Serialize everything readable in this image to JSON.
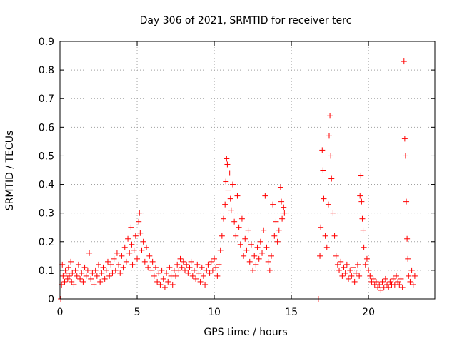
{
  "chart_data": {
    "type": "scatter",
    "title": "Day 306 of 2021, SRMTID for receiver terc",
    "xlabel": "GPS time / hours",
    "ylabel": "SRMTID / TECUs",
    "xlim": [
      0,
      24.3
    ],
    "ylim": [
      0,
      0.9
    ],
    "x_ticks": [
      0,
      5,
      10,
      15,
      20
    ],
    "x_tick_labels": [
      "0",
      "5",
      "10",
      "15",
      "20"
    ],
    "y_ticks": [
      0,
      0.1,
      0.2,
      0.3,
      0.4,
      0.5,
      0.6,
      0.7,
      0.8,
      0.9
    ],
    "y_tick_labels": [
      "0",
      "0.1",
      "0.2",
      "0.3",
      "0.4",
      "0.5",
      "0.6",
      "0.7",
      "0.8",
      "0.9"
    ],
    "grid": true,
    "marker": "+",
    "marker_color": "#ff0000",
    "series": [
      {
        "name": "SRMTID",
        "points": [
          [
            0.05,
            0.0
          ],
          [
            0.1,
            0.05
          ],
          [
            0.15,
            0.12
          ],
          [
            0.2,
            0.08
          ],
          [
            0.3,
            0.06
          ],
          [
            0.35,
            0.1
          ],
          [
            0.4,
            0.09
          ],
          [
            0.5,
            0.07
          ],
          [
            0.55,
            0.11
          ],
          [
            0.6,
            0.08
          ],
          [
            0.7,
            0.13
          ],
          [
            0.75,
            0.06
          ],
          [
            0.8,
            0.09
          ],
          [
            0.9,
            0.05
          ],
          [
            1.0,
            0.1
          ],
          [
            1.1,
            0.08
          ],
          [
            1.2,
            0.12
          ],
          [
            1.3,
            0.07
          ],
          [
            1.4,
            0.09
          ],
          [
            1.5,
            0.06
          ],
          [
            1.6,
            0.11
          ],
          [
            1.7,
            0.08
          ],
          [
            1.8,
            0.1
          ],
          [
            1.9,
            0.16
          ],
          [
            2.0,
            0.07
          ],
          [
            2.1,
            0.09
          ],
          [
            2.2,
            0.05
          ],
          [
            2.3,
            0.1
          ],
          [
            2.4,
            0.08
          ],
          [
            2.5,
            0.12
          ],
          [
            2.6,
            0.06
          ],
          [
            2.7,
            0.09
          ],
          [
            2.8,
            0.11
          ],
          [
            2.9,
            0.07
          ],
          [
            3.0,
            0.1
          ],
          [
            3.1,
            0.13
          ],
          [
            3.2,
            0.08
          ],
          [
            3.3,
            0.12
          ],
          [
            3.4,
            0.09
          ],
          [
            3.5,
            0.14
          ],
          [
            3.6,
            0.1
          ],
          [
            3.7,
            0.16
          ],
          [
            3.8,
            0.12
          ],
          [
            3.9,
            0.09
          ],
          [
            4.0,
            0.15
          ],
          [
            4.1,
            0.11
          ],
          [
            4.2,
            0.18
          ],
          [
            4.3,
            0.13
          ],
          [
            4.4,
            0.21
          ],
          [
            4.5,
            0.16
          ],
          [
            4.6,
            0.25
          ],
          [
            4.65,
            0.19
          ],
          [
            4.7,
            0.12
          ],
          [
            4.8,
            0.17
          ],
          [
            4.9,
            0.22
          ],
          [
            5.0,
            0.14
          ],
          [
            5.1,
            0.27
          ],
          [
            5.15,
            0.3
          ],
          [
            5.2,
            0.23
          ],
          [
            5.3,
            0.17
          ],
          [
            5.4,
            0.2
          ],
          [
            5.5,
            0.13
          ],
          [
            5.6,
            0.18
          ],
          [
            5.7,
            0.11
          ],
          [
            5.8,
            0.15
          ],
          [
            5.9,
            0.1
          ],
          [
            6.0,
            0.13
          ],
          [
            6.1,
            0.08
          ],
          [
            6.2,
            0.11
          ],
          [
            6.3,
            0.06
          ],
          [
            6.4,
            0.09
          ],
          [
            6.5,
            0.05
          ],
          [
            6.6,
            0.1
          ],
          [
            6.7,
            0.07
          ],
          [
            6.8,
            0.04
          ],
          [
            6.9,
            0.09
          ],
          [
            7.0,
            0.06
          ],
          [
            7.1,
            0.11
          ],
          [
            7.2,
            0.08
          ],
          [
            7.3,
            0.05
          ],
          [
            7.4,
            0.1
          ],
          [
            7.5,
            0.08
          ],
          [
            7.6,
            0.12
          ],
          [
            7.7,
            0.1
          ],
          [
            7.8,
            0.14
          ],
          [
            7.9,
            0.11
          ],
          [
            8.0,
            0.13
          ],
          [
            8.1,
            0.1
          ],
          [
            8.2,
            0.12
          ],
          [
            8.3,
            0.09
          ],
          [
            8.4,
            0.11
          ],
          [
            8.5,
            0.13
          ],
          [
            8.6,
            0.08
          ],
          [
            8.7,
            0.1
          ],
          [
            8.8,
            0.07
          ],
          [
            8.9,
            0.12
          ],
          [
            9.0,
            0.09
          ],
          [
            9.1,
            0.06
          ],
          [
            9.2,
            0.11
          ],
          [
            9.3,
            0.08
          ],
          [
            9.4,
            0.05
          ],
          [
            9.5,
            0.1
          ],
          [
            9.6,
            0.12
          ],
          [
            9.7,
            0.09
          ],
          [
            9.8,
            0.13
          ],
          [
            9.9,
            0.1
          ],
          [
            10.0,
            0.14
          ],
          [
            10.1,
            0.11
          ],
          [
            10.2,
            0.08
          ],
          [
            10.3,
            0.12
          ],
          [
            10.4,
            0.17
          ],
          [
            10.5,
            0.22
          ],
          [
            10.6,
            0.28
          ],
          [
            10.7,
            0.33
          ],
          [
            10.75,
            0.41
          ],
          [
            10.8,
            0.49
          ],
          [
            10.85,
            0.47
          ],
          [
            10.9,
            0.38
          ],
          [
            11.0,
            0.44
          ],
          [
            11.05,
            0.35
          ],
          [
            11.1,
            0.31
          ],
          [
            11.2,
            0.4
          ],
          [
            11.3,
            0.27
          ],
          [
            11.4,
            0.22
          ],
          [
            11.5,
            0.36
          ],
          [
            11.6,
            0.25
          ],
          [
            11.7,
            0.19
          ],
          [
            11.8,
            0.28
          ],
          [
            11.9,
            0.15
          ],
          [
            12.0,
            0.21
          ],
          [
            12.1,
            0.17
          ],
          [
            12.2,
            0.24
          ],
          [
            12.3,
            0.13
          ],
          [
            12.4,
            0.19
          ],
          [
            12.5,
            0.1
          ],
          [
            12.6,
            0.15
          ],
          [
            12.7,
            0.12
          ],
          [
            12.8,
            0.18
          ],
          [
            12.9,
            0.14
          ],
          [
            13.0,
            0.2
          ],
          [
            13.1,
            0.16
          ],
          [
            13.2,
            0.24
          ],
          [
            13.3,
            0.36
          ],
          [
            13.4,
            0.18
          ],
          [
            13.5,
            0.13
          ],
          [
            13.6,
            0.1
          ],
          [
            13.7,
            0.15
          ],
          [
            13.8,
            0.33
          ],
          [
            13.9,
            0.22
          ],
          [
            14.0,
            0.27
          ],
          [
            14.1,
            0.2
          ],
          [
            14.2,
            0.24
          ],
          [
            14.3,
            0.39
          ],
          [
            14.35,
            0.34
          ],
          [
            14.4,
            0.28
          ],
          [
            14.5,
            0.32
          ],
          [
            14.55,
            0.3
          ],
          [
            16.75,
            0.0
          ],
          [
            16.85,
            0.15
          ],
          [
            16.9,
            0.25
          ],
          [
            17.0,
            0.52
          ],
          [
            17.05,
            0.45
          ],
          [
            17.1,
            0.35
          ],
          [
            17.2,
            0.22
          ],
          [
            17.3,
            0.18
          ],
          [
            17.4,
            0.33
          ],
          [
            17.45,
            0.57
          ],
          [
            17.5,
            0.64
          ],
          [
            17.55,
            0.5
          ],
          [
            17.6,
            0.42
          ],
          [
            17.7,
            0.3
          ],
          [
            17.8,
            0.22
          ],
          [
            17.9,
            0.15
          ],
          [
            18.0,
            0.12
          ],
          [
            18.1,
            0.1
          ],
          [
            18.2,
            0.13
          ],
          [
            18.3,
            0.08
          ],
          [
            18.4,
            0.11
          ],
          [
            18.5,
            0.09
          ],
          [
            18.6,
            0.12
          ],
          [
            18.7,
            0.07
          ],
          [
            18.8,
            0.1
          ],
          [
            18.9,
            0.08
          ],
          [
            19.0,
            0.11
          ],
          [
            19.1,
            0.06
          ],
          [
            19.2,
            0.09
          ],
          [
            19.3,
            0.12
          ],
          [
            19.4,
            0.08
          ],
          [
            19.45,
            0.36
          ],
          [
            19.5,
            0.43
          ],
          [
            19.55,
            0.34
          ],
          [
            19.6,
            0.28
          ],
          [
            19.65,
            0.24
          ],
          [
            19.7,
            0.18
          ],
          [
            19.8,
            0.12
          ],
          [
            19.9,
            0.14
          ],
          [
            20.0,
            0.1
          ],
          [
            20.1,
            0.08
          ],
          [
            20.2,
            0.06
          ],
          [
            20.3,
            0.07
          ],
          [
            20.4,
            0.05
          ],
          [
            20.5,
            0.06
          ],
          [
            20.6,
            0.04
          ],
          [
            20.7,
            0.05
          ],
          [
            20.8,
            0.03
          ],
          [
            20.9,
            0.06
          ],
          [
            21.0,
            0.04
          ],
          [
            21.1,
            0.07
          ],
          [
            21.2,
            0.05
          ],
          [
            21.3,
            0.04
          ],
          [
            21.4,
            0.06
          ],
          [
            21.5,
            0.05
          ],
          [
            21.6,
            0.07
          ],
          [
            21.7,
            0.05
          ],
          [
            21.8,
            0.08
          ],
          [
            21.9,
            0.06
          ],
          [
            22.0,
            0.05
          ],
          [
            22.1,
            0.07
          ],
          [
            22.2,
            0.04
          ],
          [
            22.3,
            0.83
          ],
          [
            22.35,
            0.56
          ],
          [
            22.4,
            0.5
          ],
          [
            22.45,
            0.34
          ],
          [
            22.5,
            0.21
          ],
          [
            22.55,
            0.14
          ],
          [
            22.6,
            0.08
          ],
          [
            22.7,
            0.06
          ],
          [
            22.8,
            0.1
          ],
          [
            22.9,
            0.05
          ],
          [
            23.0,
            0.08
          ]
        ]
      }
    ]
  }
}
